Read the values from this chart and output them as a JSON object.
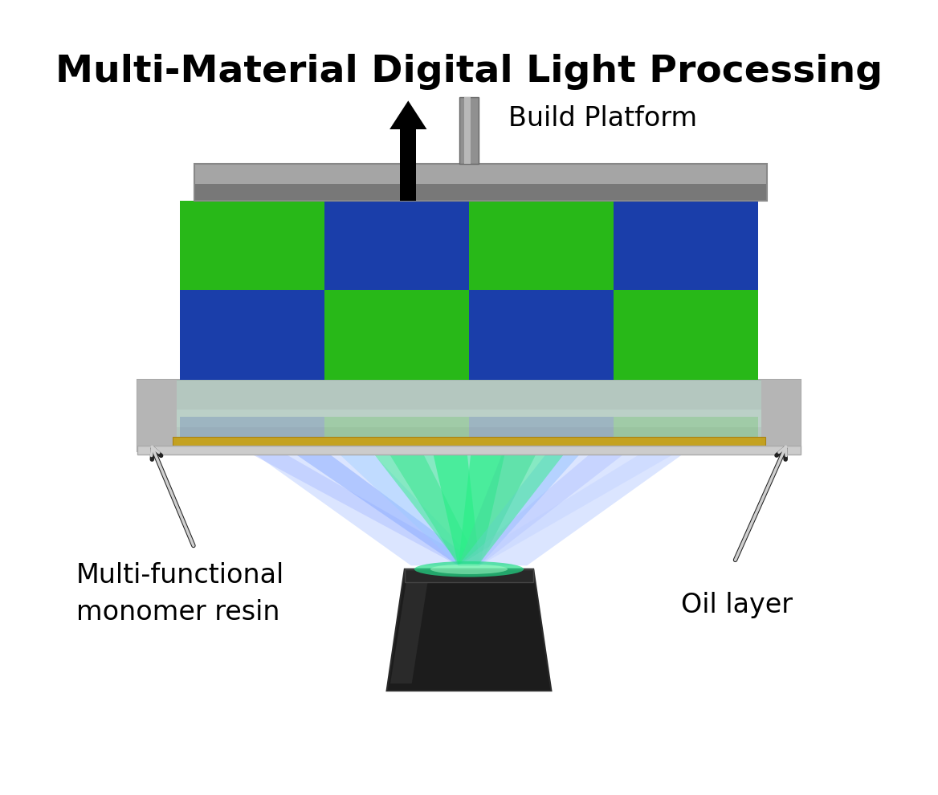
{
  "title": "Multi-Material Digital Light Processing",
  "title_fontsize": 34,
  "title_fontweight": "bold",
  "label_build_platform": "Build Platform",
  "label_resin": "Multi-functional\nmonomer resin",
  "label_oil": "Oil layer",
  "label_fontsize": 24,
  "bg_color": "#ffffff",
  "checker_blue": "#1a3eaa",
  "checker_green": "#28b818",
  "platform_color_dark": "#808080",
  "platform_color_light": "#b0b0b0",
  "tray_outer_color": "#c8c8c8",
  "tray_wall_color": "#b8b8b8",
  "tray_inner_color": "#d0d8d0",
  "resin_color": "#a8c8b8",
  "resin_alpha": 0.55,
  "glass_color": "#b89820",
  "rod_color_light": "#a0a0a0",
  "rod_color_dark": "#707070",
  "proj_color": "#1a1a1a",
  "proj_highlight": "#383838",
  "beam_blue": "#99bbff",
  "beam_green": "#33dd88",
  "arrow_label_color": "#aaaaaa",
  "arrow_label_outline": "#333333"
}
